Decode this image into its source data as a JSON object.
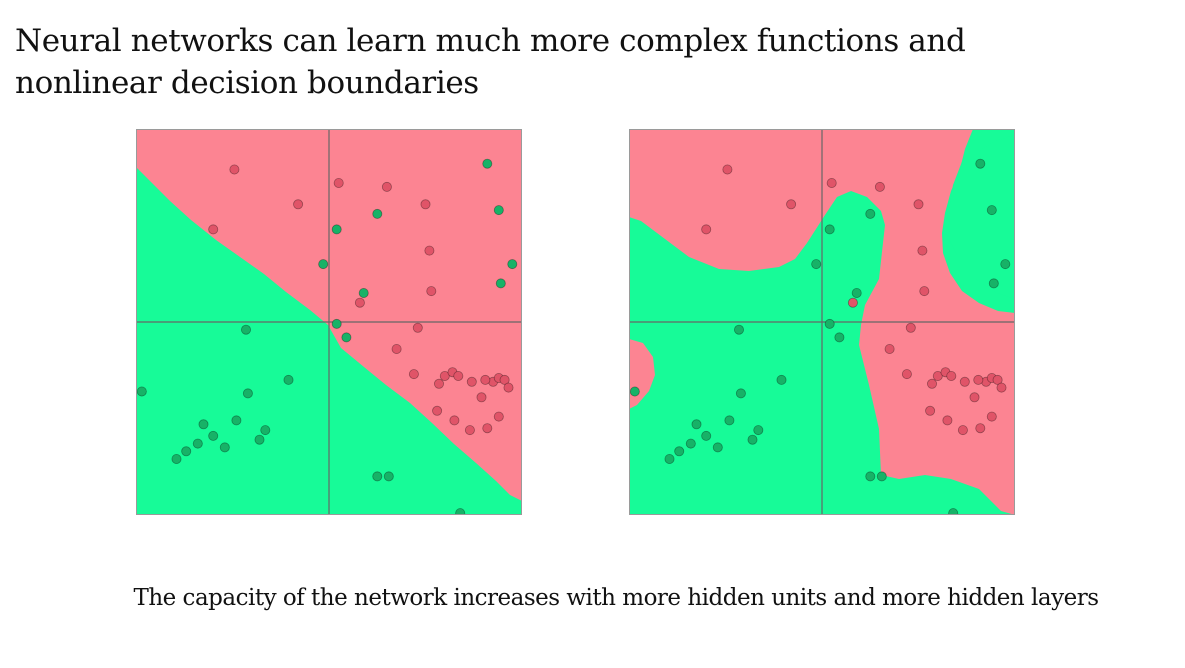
{
  "title": {
    "line1": "Neural networks can learn much more complex functions and",
    "line2": "nonlinear decision boundaries"
  },
  "caption": "The capacity of the network increases with more hidden units and more hidden layers",
  "colors": {
    "region_red": "#fc8492",
    "region_green": "#17fb98",
    "point_red": "#e05468",
    "point_green": "#17b267",
    "axis_line": "#666666"
  },
  "chart_data": [
    {
      "type": "scatter",
      "decision_boundary": "linear",
      "xlim": [
        -1,
        1
      ],
      "ylim": [
        -1,
        1
      ],
      "axes_lines": [
        0,
        0
      ],
      "series": [
        {
          "class": "red",
          "points": [
            [
              -0.49,
              0.79
            ],
            [
              0.05,
              0.72
            ],
            [
              0.3,
              0.7
            ],
            [
              -0.16,
              0.61
            ],
            [
              0.5,
              0.61
            ],
            [
              -0.6,
              0.48
            ],
            [
              0.52,
              0.37
            ],
            [
              0.53,
              0.16
            ],
            [
              0.16,
              0.1
            ],
            [
              0.46,
              -0.03
            ],
            [
              0.35,
              -0.14
            ],
            [
              0.44,
              -0.27
            ],
            [
              0.6,
              -0.28
            ],
            [
              0.64,
              -0.26
            ],
            [
              0.67,
              -0.28
            ],
            [
              0.85,
              -0.31
            ],
            [
              0.88,
              -0.29
            ],
            [
              0.91,
              -0.3
            ],
            [
              0.93,
              -0.34
            ],
            [
              0.57,
              -0.32
            ],
            [
              0.74,
              -0.31
            ],
            [
              0.81,
              -0.3
            ],
            [
              0.56,
              -0.46
            ],
            [
              0.65,
              -0.51
            ],
            [
              0.73,
              -0.56
            ],
            [
              0.82,
              -0.55
            ],
            [
              0.88,
              -0.49
            ],
            [
              0.79,
              -0.39
            ]
          ]
        },
        {
          "class": "green",
          "points": [
            [
              0.82,
              0.82
            ],
            [
              0.88,
              0.58
            ],
            [
              0.25,
              0.56
            ],
            [
              0.04,
              0.48
            ],
            [
              0.95,
              0.3
            ],
            [
              -0.03,
              0.3
            ],
            [
              0.89,
              0.2
            ],
            [
              0.18,
              0.15
            ],
            [
              0.04,
              -0.01
            ],
            [
              0.09,
              -0.08
            ],
            [
              -0.43,
              -0.04
            ],
            [
              -0.21,
              -0.3
            ],
            [
              -0.97,
              -0.36
            ],
            [
              -0.42,
              -0.37
            ],
            [
              -0.48,
              -0.51
            ],
            [
              -0.65,
              -0.53
            ],
            [
              -0.6,
              -0.59
            ],
            [
              -0.68,
              -0.63
            ],
            [
              -0.54,
              -0.65
            ],
            [
              -0.33,
              -0.56
            ],
            [
              -0.36,
              -0.61
            ],
            [
              -0.74,
              -0.67
            ],
            [
              -0.79,
              -0.71
            ],
            [
              0.25,
              -0.8
            ],
            [
              0.31,
              -0.8
            ],
            [
              0.68,
              -0.99
            ]
          ]
        }
      ]
    },
    {
      "type": "scatter",
      "decision_boundary": "nonlinear",
      "xlim": [
        -1,
        1
      ],
      "ylim": [
        -1,
        1
      ],
      "axes_lines": [
        0,
        0
      ],
      "series": [
        {
          "class": "red",
          "points": [
            [
              -0.49,
              0.79
            ],
            [
              0.05,
              0.72
            ],
            [
              0.3,
              0.7
            ],
            [
              -0.16,
              0.61
            ],
            [
              0.5,
              0.61
            ],
            [
              -0.6,
              0.48
            ],
            [
              0.52,
              0.37
            ],
            [
              0.53,
              0.16
            ],
            [
              0.16,
              0.1
            ],
            [
              0.46,
              -0.03
            ],
            [
              0.35,
              -0.14
            ],
            [
              0.44,
              -0.27
            ],
            [
              0.6,
              -0.28
            ],
            [
              0.64,
              -0.26
            ],
            [
              0.67,
              -0.28
            ],
            [
              0.85,
              -0.31
            ],
            [
              0.88,
              -0.29
            ],
            [
              0.91,
              -0.3
            ],
            [
              0.93,
              -0.34
            ],
            [
              0.57,
              -0.32
            ],
            [
              0.74,
              -0.31
            ],
            [
              0.81,
              -0.3
            ],
            [
              0.56,
              -0.46
            ],
            [
              0.65,
              -0.51
            ],
            [
              0.73,
              -0.56
            ],
            [
              0.82,
              -0.55
            ],
            [
              0.88,
              -0.49
            ],
            [
              0.79,
              -0.39
            ]
          ]
        },
        {
          "class": "green",
          "points": [
            [
              0.82,
              0.82
            ],
            [
              0.88,
              0.58
            ],
            [
              0.25,
              0.56
            ],
            [
              0.04,
              0.48
            ],
            [
              0.95,
              0.3
            ],
            [
              -0.03,
              0.3
            ],
            [
              0.89,
              0.2
            ],
            [
              0.18,
              0.15
            ],
            [
              0.04,
              -0.01
            ],
            [
              0.09,
              -0.08
            ],
            [
              -0.43,
              -0.04
            ],
            [
              -0.21,
              -0.3
            ],
            [
              -0.97,
              -0.36
            ],
            [
              -0.42,
              -0.37
            ],
            [
              -0.48,
              -0.51
            ],
            [
              -0.65,
              -0.53
            ],
            [
              -0.6,
              -0.59
            ],
            [
              -0.68,
              -0.63
            ],
            [
              -0.54,
              -0.65
            ],
            [
              -0.33,
              -0.56
            ],
            [
              -0.36,
              -0.61
            ],
            [
              -0.74,
              -0.67
            ],
            [
              -0.79,
              -0.71
            ],
            [
              0.25,
              -0.8
            ],
            [
              0.31,
              -0.8
            ],
            [
              0.68,
              -0.99
            ]
          ]
        }
      ]
    }
  ]
}
